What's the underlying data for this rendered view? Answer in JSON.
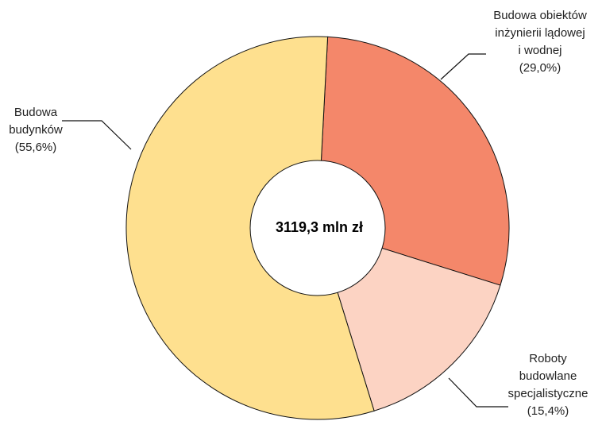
{
  "chart_data": {
    "type": "donut",
    "center_label": "3119,3 mln zł",
    "categories": [
      [
        "Budowa obiektów",
        "inżynierii lądowej",
        "i wodnej"
      ],
      [
        "Roboty",
        "budowlane",
        "specjalistyczne"
      ],
      [
        "Budowa",
        "budynków"
      ]
    ],
    "values": [
      29.0,
      15.4,
      55.6
    ],
    "value_labels": [
      "(29,0%)",
      "(15,4%)",
      "(55,6%)"
    ],
    "colors": [
      "#f4876a",
      "#fcd3c3",
      "#fee08f"
    ]
  }
}
